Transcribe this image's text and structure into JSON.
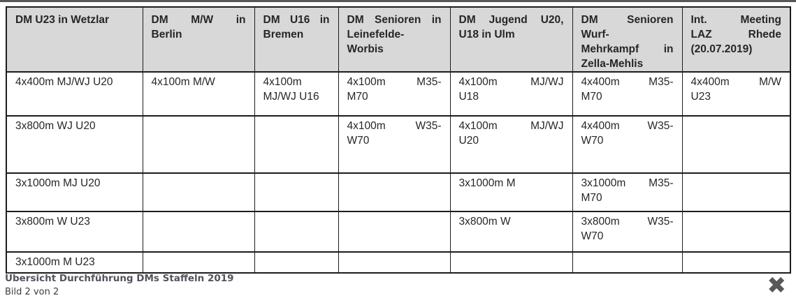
{
  "table": {
    "headers": [
      "DM U23 in Wetzlar",
      "DM M/W in\nBerlin",
      "DM U16 in\nBremen",
      "DM Senioren in\nLeinefelde-\nWorbis",
      "DM Jugend U20,\nU18 in Ulm",
      "DM Senioren\nWurf-\nMehrkampf in\nZella-Mehlis",
      "Int. Meeting\nLAZ Rhede\n(20.07.2019)"
    ],
    "rows": [
      [
        "4x400m MJ/WJ U20",
        "4x100m M/W",
        "4x100m\nMJ/WJ U16",
        "4x100m M35-\nM70",
        "4x100m MJ/WJ\nU18",
        "4x400m M35-\nM70",
        "4x400m M/W\nU23"
      ],
      [
        "3x800m WJ U20",
        "",
        "",
        "4x100m W35-\nW70",
        "4x100m MJ/WJ\nU20",
        "4x400m W35-\nW70",
        ""
      ],
      [
        "3x1000m MJ U20",
        "",
        "",
        "",
        "3x1000m M",
        "3x1000m M35-\nM70",
        ""
      ],
      [
        "3x800m W U23",
        "",
        "",
        "",
        "3x800m W",
        "3x800m W35-\nW70",
        ""
      ],
      [
        "3x1000m M U23",
        "",
        "",
        "",
        "",
        "",
        ""
      ]
    ]
  },
  "caption": {
    "title": "Übersicht Durchführung DMs Staffeln 2019",
    "subtitle": "Bild 2 von 2"
  },
  "icons": {
    "close_glyph": "✖"
  },
  "colors": {
    "header_bg": "#d8d8d8",
    "border": "#1c1c1c",
    "table_text": "#262626",
    "caption_title": "#53535b",
    "caption_sub": "#3d3d3d",
    "close_icon": "#58585a",
    "top_rule": "#565658"
  }
}
